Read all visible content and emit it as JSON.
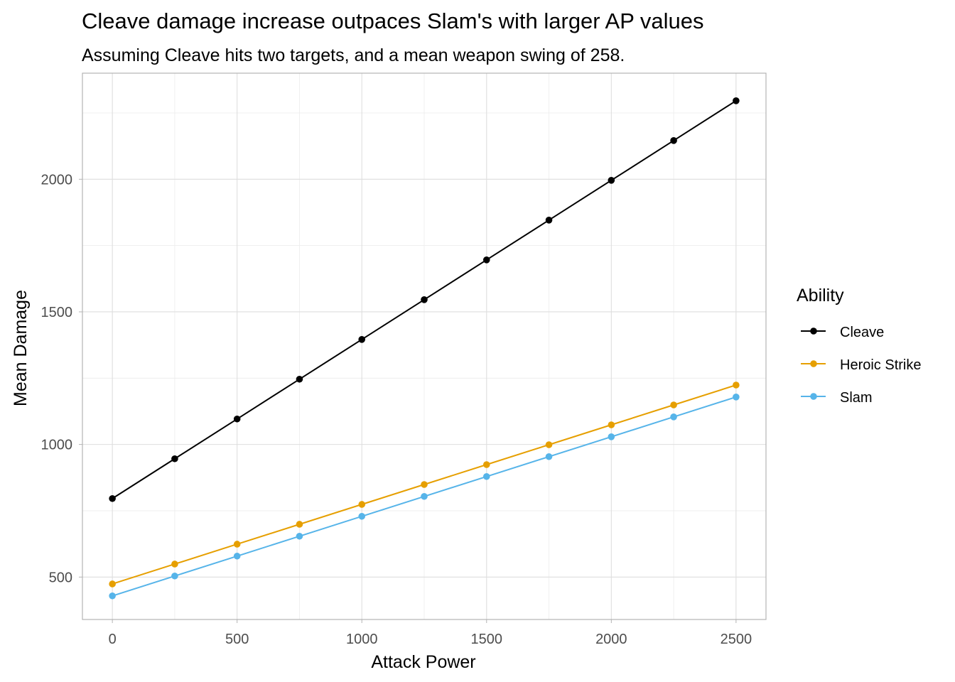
{
  "chart_data": {
    "type": "line",
    "title": "Cleave damage increase outpaces Slam's with larger AP values",
    "subtitle": "Assuming Cleave hits two targets, and a mean weapon swing of 258.",
    "xlabel": "Attack Power",
    "ylabel": "Mean Damage",
    "x": [
      0,
      250,
      500,
      750,
      1000,
      1250,
      1500,
      1750,
      2000,
      2250,
      2500
    ],
    "xlim": [
      -120,
      2620
    ],
    "ylim": [
      340,
      2400
    ],
    "x_ticks": [
      0,
      500,
      1000,
      1500,
      2000,
      2500
    ],
    "x_tick_labels": [
      "0",
      "500",
      "1000",
      "1500",
      "2000",
      "2500"
    ],
    "y_ticks": [
      500,
      1000,
      1500,
      2000
    ],
    "y_tick_labels": [
      "500",
      "1000",
      "1500",
      "2000"
    ],
    "grid": true,
    "legend": {
      "title": "Ability",
      "position": "right"
    },
    "series": [
      {
        "name": "Cleave",
        "color": "#000000",
        "values": [
          796,
          946,
          1096,
          1246,
          1396,
          1546,
          1696,
          1846,
          1996,
          2146,
          2296
        ]
      },
      {
        "name": "Heroic Strike",
        "color": "#E69F00",
        "values": [
          474,
          549,
          624,
          699,
          774,
          849,
          924,
          999,
          1074,
          1149,
          1224
        ]
      },
      {
        "name": "Slam",
        "color": "#56B4E9",
        "values": [
          429,
          504,
          579,
          654,
          729,
          804,
          879,
          954,
          1029,
          1104,
          1179
        ]
      }
    ]
  }
}
